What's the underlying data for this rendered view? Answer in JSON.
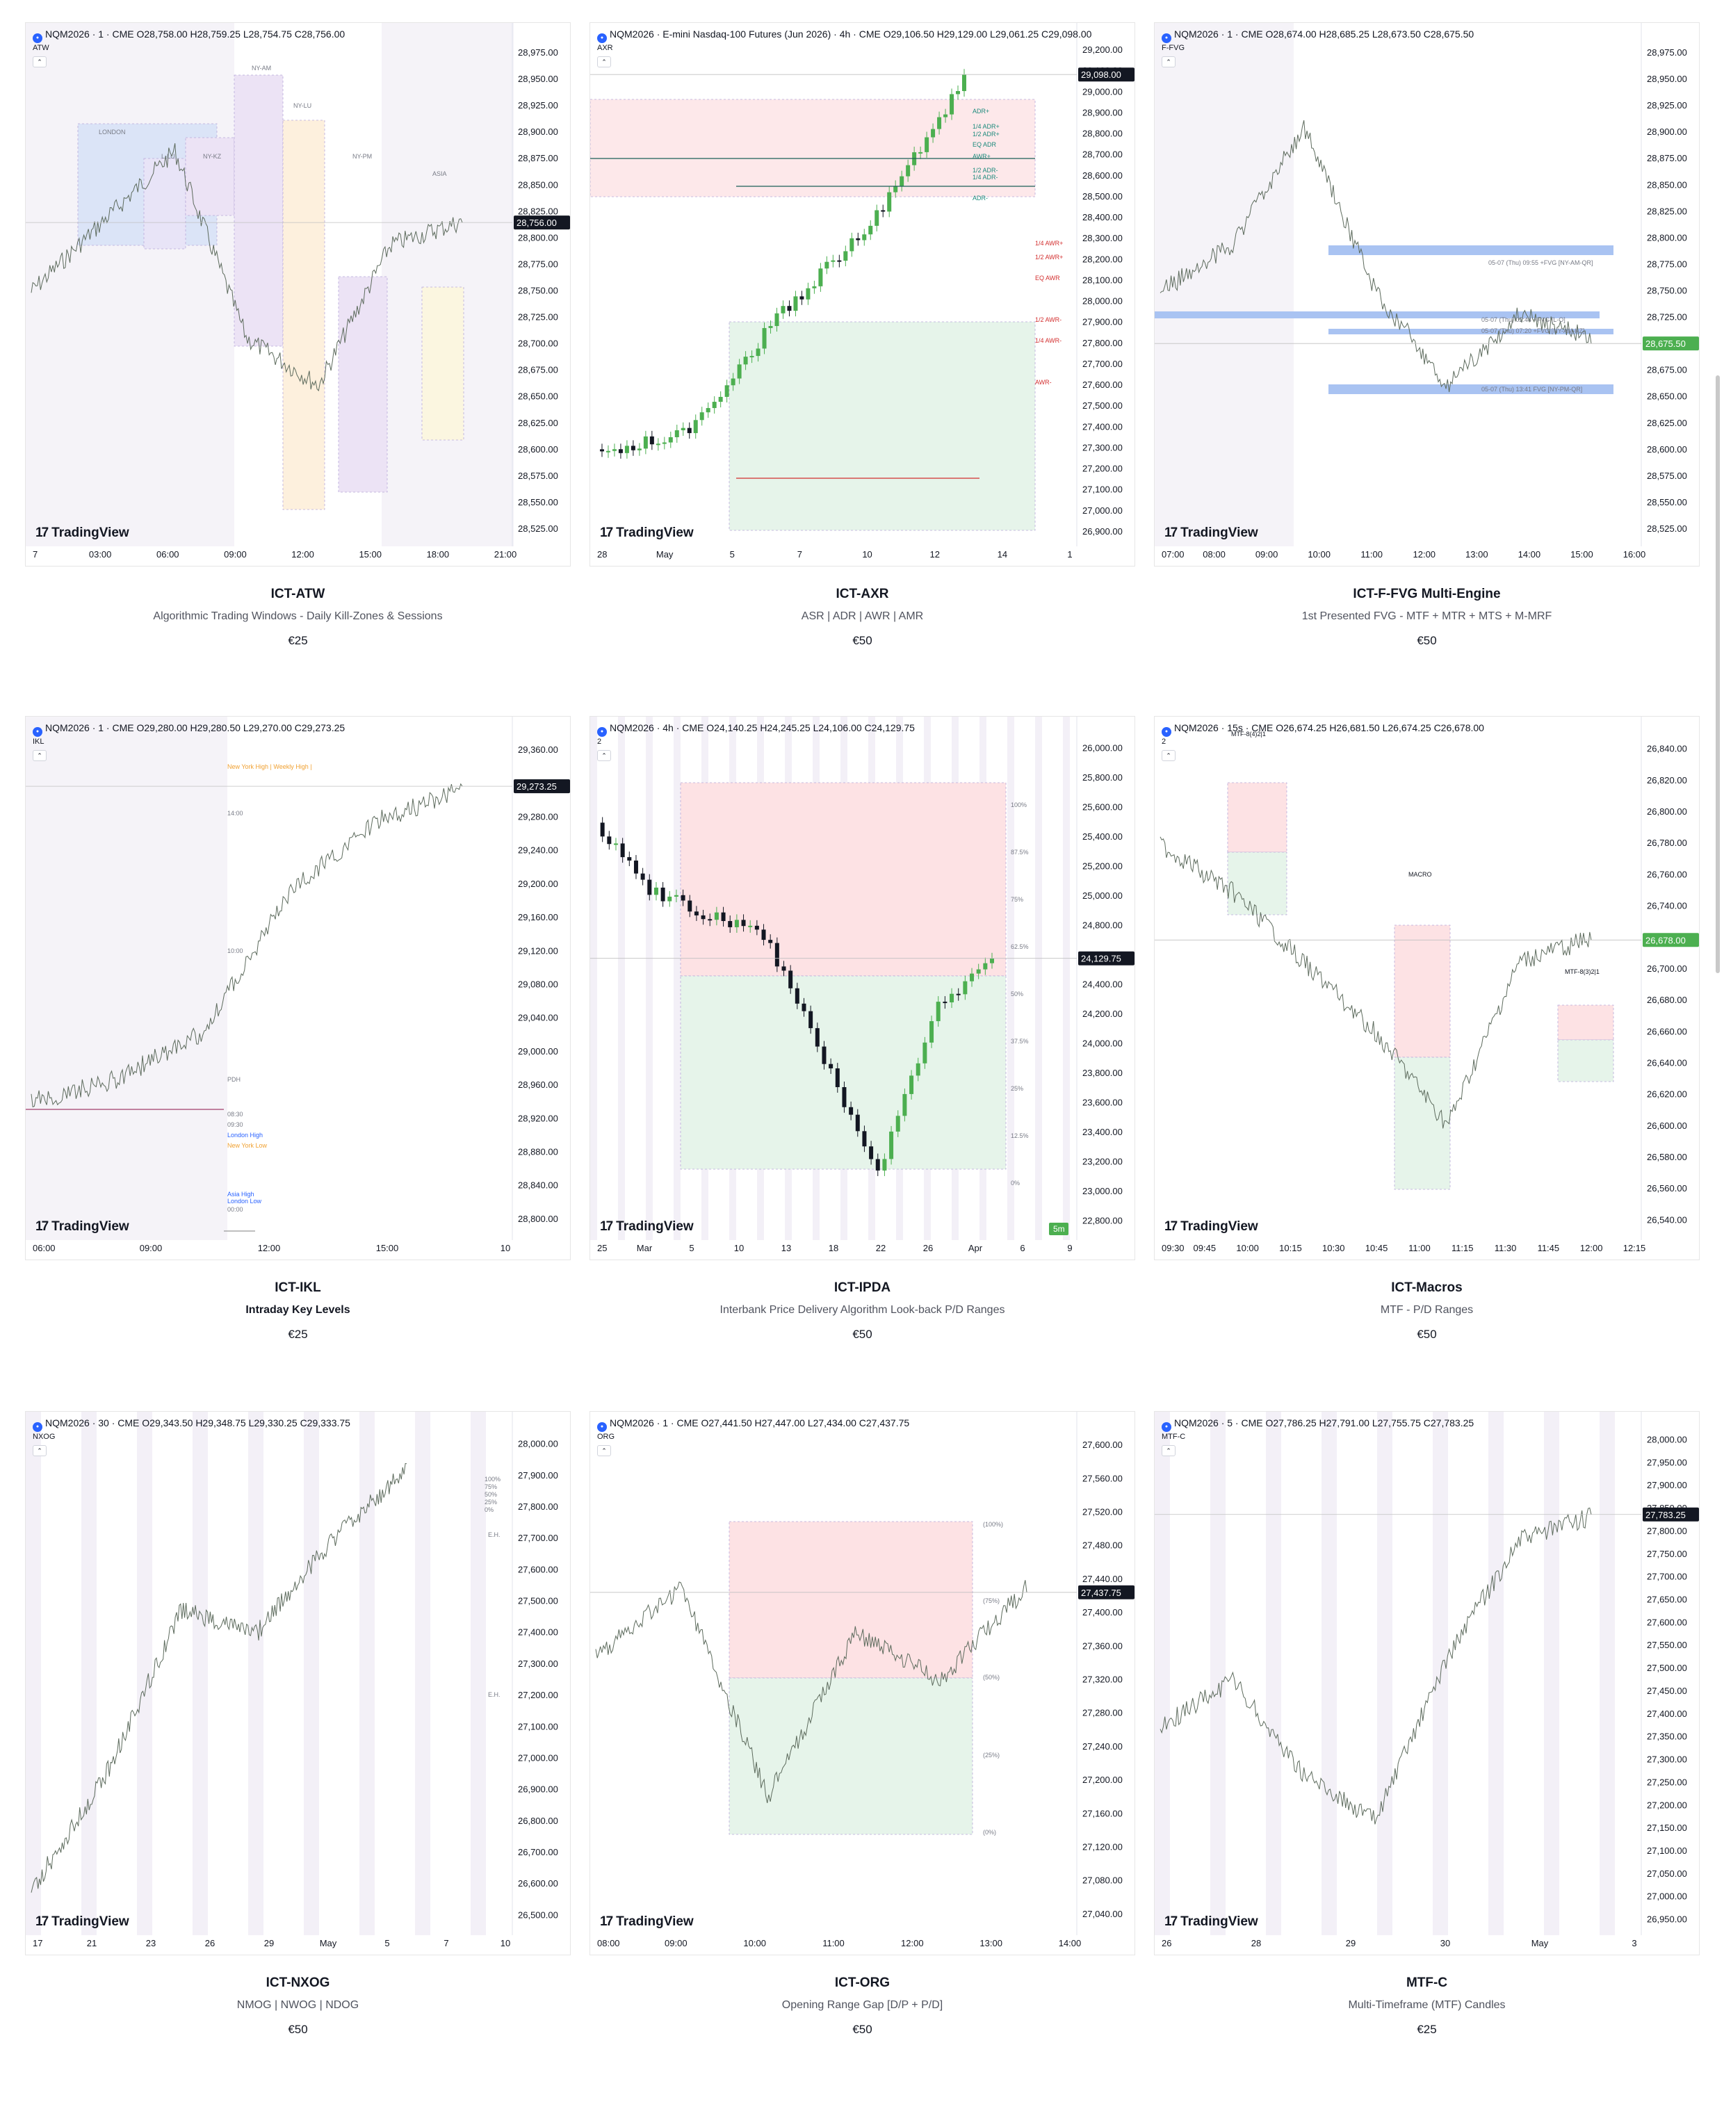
{
  "cards": [
    {
      "header": "NQM2026 · 1 · CME  O28,758.00  H28,759.25  L28,754.75  C28,756.00",
      "indicator": "ATW",
      "title": "ICT-ATW",
      "description": "Algorithmic Trading Windows - Daily Kill-Zones & Sessions",
      "price": "€25",
      "y_labels": [
        "28,975.00",
        "28,950.00",
        "28,925.00",
        "28,900.00",
        "28,875.00",
        "28,850.00",
        "28,825.00",
        "28,800.00",
        "28,775.00",
        "28,750.00",
        "28,725.00",
        "28,700.00",
        "28,675.00",
        "28,650.00",
        "28,625.00",
        "28,600.00",
        "28,575.00",
        "28,550.00",
        "28,525.00"
      ],
      "x_labels": [
        "7",
        "03:00",
        "06:00",
        "09:00",
        "12:00",
        "15:00",
        "18:00",
        "21:00"
      ],
      "last_price": "28,756.00",
      "zone_labels": [
        "LONDON",
        "L-LU",
        "NY-KZ",
        "NY-AM",
        "NY-LU",
        "NY-PM",
        "ASIA"
      ]
    },
    {
      "header": "NQM2026 · E-mini Nasdaq-100 Futures (Jun 2026) · 4h · CME  O29,106.50  H29,129.00  L29,061.25  C29,098.00",
      "indicator": "AXR",
      "title": "ICT-AXR",
      "description": "ASR | ADR | AWR | AMR",
      "price": "€50",
      "y_labels": [
        "29,200.00",
        "29,100.00",
        "29,000.00",
        "28,900.00",
        "28,800.00",
        "28,700.00",
        "28,600.00",
        "28,500.00",
        "28,400.00",
        "28,300.00",
        "28,200.00",
        "28,100.00",
        "28,000.00",
        "27,900.00",
        "27,800.00",
        "27,700.00",
        "27,600.00",
        "27,500.00",
        "27,400.00",
        "27,300.00",
        "27,200.00",
        "27,100.00",
        "27,000.00",
        "26,900.00"
      ],
      "x_labels": [
        "28",
        "May",
        "5",
        "7",
        "10",
        "12",
        "14",
        "1"
      ],
      "last_price": "29,098.00",
      "level_labels": [
        "ADR+",
        "1/4 ADR+",
        "1/2 ADR+",
        "EQ ADR",
        "AWR+",
        "1/2 ADR-",
        "1/4 ADR-",
        "ADR-",
        "1/4 AWR+",
        "1/2 AWR+",
        "EQ AWR",
        "1/2 AWR-",
        "1/4 AWR-",
        "AWR-"
      ]
    },
    {
      "header": "NQM2026 · 1 · CME  O28,674.00  H28,685.25  L28,673.50  C28,675.50",
      "indicator": "F-FVG",
      "title": "ICT-F-FVG Multi-Engine",
      "description": "1st Presented FVG - MTF + MTR + MTS + M-MRF",
      "price": "€50",
      "y_labels": [
        "28,975.00",
        "28,950.00",
        "28,925.00",
        "28,900.00",
        "28,875.00",
        "28,850.00",
        "28,825.00",
        "28,800.00",
        "28,775.00",
        "28,750.00",
        "28,725.00",
        "28,700.00",
        "28,675.00",
        "28,650.00",
        "28,625.00",
        "28,600.00",
        "28,575.00",
        "28,550.00",
        "28,525.00"
      ],
      "x_labels": [
        "07:00",
        "08:00",
        "09:00",
        "10:00",
        "11:00",
        "12:00",
        "13:00",
        "14:00",
        "15:00",
        "16:00"
      ],
      "last_price": "28,675.50",
      "fvg_labels": [
        "05-07 (Thu) 09:55 +FVG [NY-AM-QR]",
        "05-07 (Thu) 02:44 +FVG [L-O]",
        "05-07 (Thu) 07:20 +FVG [NY-AM-KZ]",
        "05-07 (Thu) 13:41 FVG [NY-PM-QR]"
      ]
    },
    {
      "header": "NQM2026 · 1 · CME  O29,280.00  H29,280.50  L29,270.00  C29,273.25",
      "indicator": "IKL",
      "title": "ICT-IKL",
      "description": "Intraday Key Levels",
      "price": "€25",
      "y_labels": [
        "29,360.00",
        "29,320.00",
        "29,280.00",
        "29,240.00",
        "29,200.00",
        "29,160.00",
        "29,120.00",
        "29,080.00",
        "29,040.00",
        "29,000.00",
        "28,960.00",
        "28,920.00",
        "28,880.00",
        "28,840.00",
        "28,800.00"
      ],
      "x_labels": [
        "06:00",
        "09:00",
        "12:00",
        "15:00",
        "10"
      ],
      "last_price": "29,273.25",
      "level_labels": [
        "New York High | Weekly High |",
        "14:00",
        "10:00",
        "PDH",
        "08:30",
        "09:30",
        "London High",
        "New York Low",
        "Asia High",
        "London Low",
        "00:00"
      ]
    },
    {
      "header": "NQM2026 · 4h · CME  O24,140.25  H24,245.25  L24,106.00  C24,129.75",
      "indicator": "2",
      "title": "ICT-IPDA",
      "description": "Interbank Price Delivery Algorithm Look-back P/D Ranges",
      "price": "€50",
      "y_labels": [
        "26,000.00",
        "25,800.00",
        "25,600.00",
        "25,400.00",
        "25,200.00",
        "25,000.00",
        "24,800.00",
        "24,600.00",
        "24,400.00",
        "24,200.00",
        "24,000.00",
        "23,800.00",
        "23,600.00",
        "23,400.00",
        "23,200.00",
        "23,000.00",
        "22,800.00"
      ],
      "x_labels": [
        "25",
        "Mar",
        "5",
        "10",
        "13",
        "18",
        "22",
        "26",
        "Apr",
        "6",
        "9"
      ],
      "last_price": "24,129.75",
      "pct_labels": [
        "100%",
        "87.5%",
        "75%",
        "62.5%",
        "50%",
        "37.5%",
        "25%",
        "12.5%",
        "0%"
      ],
      "badge": "5m"
    },
    {
      "header": "NQM2026 · 15s · CME  O26,674.25  H26,681.50  L26,674.25  C26,678.00",
      "indicator": "2",
      "title": "ICT-Macros",
      "description": "MTF - P/D Ranges",
      "price": "€50",
      "y_labels": [
        "26,840.00",
        "26,820.00",
        "26,800.00",
        "26,780.00",
        "26,760.00",
        "26,740.00",
        "26,720.00",
        "26,700.00",
        "26,680.00",
        "26,660.00",
        "26,640.00",
        "26,620.00",
        "26,600.00",
        "26,580.00",
        "26,560.00",
        "26,540.00"
      ],
      "x_labels": [
        "09:30",
        "09:45",
        "10:00",
        "10:15",
        "10:30",
        "10:45",
        "11:00",
        "11:15",
        "11:30",
        "11:45",
        "12:00",
        "12:15"
      ],
      "last_price": "26,678.00",
      "box_labels": [
        "MTF-8(4)2|1",
        "MACRO",
        "MTF-8(3)2|1"
      ]
    },
    {
      "header": "NQM2026 · 30 · CME  O29,343.50  H29,348.75  L29,330.25  C29,333.75",
      "indicator": "NXOG",
      "title": "ICT-NXOG",
      "description": "NMOG | NWOG | NDOG",
      "price": "€50",
      "y_labels": [
        "28,000.00",
        "27,900.00",
        "27,800.00",
        "27,700.00",
        "27,600.00",
        "27,500.00",
        "27,400.00",
        "27,300.00",
        "27,200.00",
        "27,100.00",
        "27,000.00",
        "26,900.00",
        "26,800.00",
        "26,700.00",
        "26,600.00",
        "26,500.00"
      ],
      "x_labels": [
        "17",
        "21",
        "23",
        "26",
        "29",
        "May",
        "5",
        "7",
        "10"
      ],
      "pct_labels": [
        "100%",
        "75%",
        "50%",
        "25%",
        "0%"
      ],
      "eh_label": "E.H."
    },
    {
      "header": "NQM2026 · 1 · CME  O27,441.50  H27,447.00  L27,434.00  C27,437.75",
      "indicator": "ORG",
      "title": "ICT-ORG",
      "description": "Opening Range Gap [D/P + P/D]",
      "price": "€50",
      "y_labels": [
        "27,600.00",
        "27,560.00",
        "27,520.00",
        "27,480.00",
        "27,440.00",
        "27,400.00",
        "27,360.00",
        "27,320.00",
        "27,280.00",
        "27,240.00",
        "27,200.00",
        "27,160.00",
        "27,120.00",
        "27,080.00",
        "27,040.00"
      ],
      "x_labels": [
        "08:00",
        "09:00",
        "10:00",
        "11:00",
        "12:00",
        "13:00",
        "14:00"
      ],
      "last_price": "27,437.75",
      "pct_labels": [
        "(100%)",
        "(75%)",
        "(50%)",
        "(25%)",
        "(0%)"
      ]
    },
    {
      "header": "NQM2026 · 5 · CME  O27,786.25  H27,791.00  L27,755.75  C27,783.25",
      "indicator": "MTF-C",
      "title": "MTF-C",
      "description": "Multi-Timeframe (MTF) Candles",
      "price": "€25",
      "y_labels": [
        "28,000.00",
        "27,950.00",
        "27,900.00",
        "27,850.00",
        "27,800.00",
        "27,750.00",
        "27,700.00",
        "27,650.00",
        "27,600.00",
        "27,550.00",
        "27,500.00",
        "27,450.00",
        "27,400.00",
        "27,350.00",
        "27,300.00",
        "27,250.00",
        "27,200.00",
        "27,150.00",
        "27,100.00",
        "27,050.00",
        "27,000.00",
        "26,950.00"
      ],
      "x_labels": [
        "26",
        "28",
        "29",
        "30",
        "May",
        "3"
      ],
      "last_price": "27,783.25"
    }
  ],
  "branding": {
    "logo_text": "TradingView",
    "logo_mark": "17"
  },
  "colors": {
    "accent": "#2962ff",
    "green": "#4caf50",
    "red": "#f23645",
    "premium": "#fde2e4",
    "discount": "#e6f4ea"
  }
}
